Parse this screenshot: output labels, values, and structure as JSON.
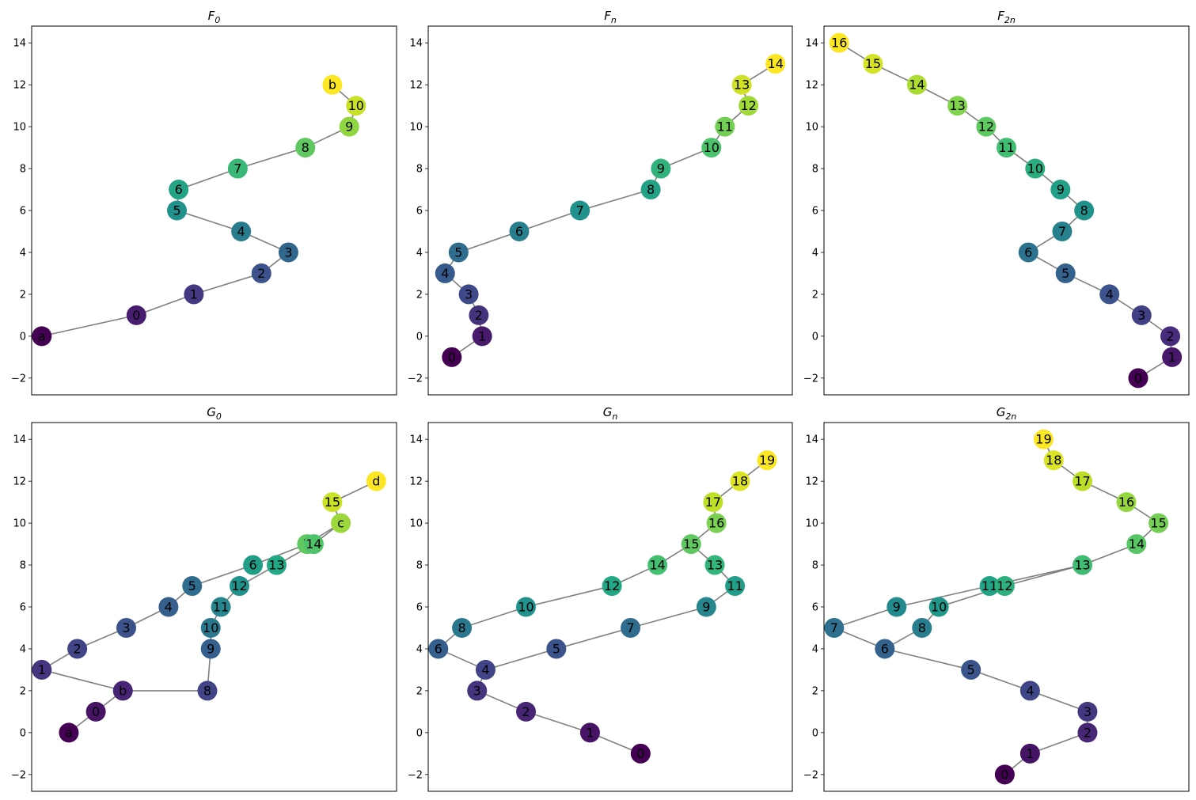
{
  "chart_data": [
    {
      "type": "scatter",
      "title": "F",
      "title_sub": "0",
      "xlim": [
        -0.3,
        10.5
      ],
      "ylim": [
        -2.8,
        14.8
      ],
      "yticks": [
        -2,
        0,
        2,
        4,
        6,
        8,
        10,
        12,
        14
      ],
      "nodes": [
        {
          "label": "a",
          "x": 0,
          "y": 0,
          "c": 0.0
        },
        {
          "label": "0",
          "x": 2.8,
          "y": 1,
          "c": 0.083
        },
        {
          "label": "1",
          "x": 4.5,
          "y": 2,
          "c": 0.167
        },
        {
          "label": "2",
          "x": 6.5,
          "y": 3,
          "c": 0.25
        },
        {
          "label": "3",
          "x": 7.3,
          "y": 4,
          "c": 0.333
        },
        {
          "label": "4",
          "x": 5.9,
          "y": 5,
          "c": 0.417
        },
        {
          "label": "5",
          "x": 4.0,
          "y": 6,
          "c": 0.5
        },
        {
          "label": "6",
          "x": 4.05,
          "y": 7,
          "c": 0.583
        },
        {
          "label": "7",
          "x": 5.8,
          "y": 8,
          "c": 0.667
        },
        {
          "label": "8",
          "x": 7.8,
          "y": 9,
          "c": 0.75
        },
        {
          "label": "9",
          "x": 9.1,
          "y": 10,
          "c": 0.833
        },
        {
          "label": "10",
          "x": 9.3,
          "y": 11,
          "c": 0.917
        },
        {
          "label": "b",
          "x": 8.6,
          "y": 12,
          "c": 1.0
        }
      ],
      "edges": [
        [
          "a",
          "0"
        ],
        [
          "0",
          "1"
        ],
        [
          "1",
          "2"
        ],
        [
          "2",
          "3"
        ],
        [
          "3",
          "4"
        ],
        [
          "4",
          "5"
        ],
        [
          "5",
          "6"
        ],
        [
          "6",
          "7"
        ],
        [
          "7",
          "8"
        ],
        [
          "8",
          "9"
        ],
        [
          "9",
          "10"
        ],
        [
          "10",
          "b"
        ]
      ]
    },
    {
      "type": "scatter",
      "title": "F",
      "title_sub": "n",
      "xlim": [
        -0.3,
        10.5
      ],
      "ylim": [
        -2.8,
        14.8
      ],
      "yticks": [
        -2,
        0,
        2,
        4,
        6,
        8,
        10,
        12,
        14
      ],
      "nodes": [
        {
          "label": "0",
          "x": 0.4,
          "y": -1,
          "c": 0.0
        },
        {
          "label": "1",
          "x": 1.3,
          "y": 0,
          "c": 0.071
        },
        {
          "label": "2",
          "x": 1.2,
          "y": 1,
          "c": 0.143
        },
        {
          "label": "3",
          "x": 0.9,
          "y": 2,
          "c": 0.214
        },
        {
          "label": "4",
          "x": 0.2,
          "y": 3,
          "c": 0.286
        },
        {
          "label": "5",
          "x": 0.6,
          "y": 4,
          "c": 0.357
        },
        {
          "label": "6",
          "x": 2.4,
          "y": 5,
          "c": 0.429
        },
        {
          "label": "7",
          "x": 4.2,
          "y": 6,
          "c": 0.5
        },
        {
          "label": "8",
          "x": 6.3,
          "y": 7,
          "c": 0.571
        },
        {
          "label": "9",
          "x": 6.6,
          "y": 8,
          "c": 0.643
        },
        {
          "label": "10",
          "x": 8.1,
          "y": 9,
          "c": 0.714
        },
        {
          "label": "11",
          "x": 8.5,
          "y": 10,
          "c": 0.786
        },
        {
          "label": "12",
          "x": 9.2,
          "y": 11,
          "c": 0.857
        },
        {
          "label": "13",
          "x": 9.0,
          "y": 12,
          "c": 0.929
        },
        {
          "label": "14",
          "x": 10.0,
          "y": 13,
          "c": 1.0
        }
      ],
      "edges": [
        [
          "0",
          "1"
        ],
        [
          "1",
          "2"
        ],
        [
          "2",
          "3"
        ],
        [
          "3",
          "4"
        ],
        [
          "4",
          "5"
        ],
        [
          "5",
          "6"
        ],
        [
          "6",
          "7"
        ],
        [
          "7",
          "8"
        ],
        [
          "8",
          "9"
        ],
        [
          "9",
          "10"
        ],
        [
          "10",
          "11"
        ],
        [
          "11",
          "12"
        ],
        [
          "12",
          "13"
        ],
        [
          "13",
          "14"
        ]
      ]
    },
    {
      "type": "scatter",
      "title": "F",
      "title_sub": "2n",
      "xlim": [
        -0.3,
        10.5
      ],
      "ylim": [
        -2.8,
        14.8
      ],
      "yticks": [
        -2,
        0,
        2,
        4,
        6,
        8,
        10,
        12,
        14
      ],
      "nodes": [
        {
          "label": "0",
          "x": 9.0,
          "y": -2,
          "c": 0.0
        },
        {
          "label": "1",
          "x": 10.0,
          "y": -1,
          "c": 0.0625
        },
        {
          "label": "2",
          "x": 9.95,
          "y": 0,
          "c": 0.125
        },
        {
          "label": "3",
          "x": 9.1,
          "y": 1,
          "c": 0.1875
        },
        {
          "label": "4",
          "x": 8.15,
          "y": 2,
          "c": 0.25
        },
        {
          "label": "5",
          "x": 6.85,
          "y": 3,
          "c": 0.3125
        },
        {
          "label": "6",
          "x": 5.75,
          "y": 4,
          "c": 0.375
        },
        {
          "label": "7",
          "x": 6.75,
          "y": 5,
          "c": 0.4375
        },
        {
          "label": "8",
          "x": 7.4,
          "y": 6,
          "c": 0.5
        },
        {
          "label": "9",
          "x": 6.7,
          "y": 7,
          "c": 0.5625
        },
        {
          "label": "10",
          "x": 5.95,
          "y": 8,
          "c": 0.625
        },
        {
          "label": "11",
          "x": 5.1,
          "y": 9,
          "c": 0.6875
        },
        {
          "label": "12",
          "x": 4.5,
          "y": 10,
          "c": 0.75
        },
        {
          "label": "13",
          "x": 3.65,
          "y": 11,
          "c": 0.8125
        },
        {
          "label": "14",
          "x": 2.45,
          "y": 12,
          "c": 0.875
        },
        {
          "label": "15",
          "x": 1.15,
          "y": 13,
          "c": 0.9375
        },
        {
          "label": "16",
          "x": 0.15,
          "y": 14,
          "c": 1.0
        }
      ],
      "edges": [
        [
          "0",
          "1"
        ],
        [
          "1",
          "2"
        ],
        [
          "2",
          "3"
        ],
        [
          "3",
          "4"
        ],
        [
          "4",
          "5"
        ],
        [
          "5",
          "6"
        ],
        [
          "6",
          "7"
        ],
        [
          "7",
          "8"
        ],
        [
          "8",
          "9"
        ],
        [
          "9",
          "10"
        ],
        [
          "10",
          "11"
        ],
        [
          "11",
          "12"
        ],
        [
          "12",
          "13"
        ],
        [
          "13",
          "14"
        ],
        [
          "14",
          "15"
        ],
        [
          "15",
          "16"
        ]
      ]
    },
    {
      "type": "scatter",
      "title": "G",
      "title_sub": "0",
      "xlim": [
        -0.3,
        10.5
      ],
      "ylim": [
        -2.8,
        14.8
      ],
      "yticks": [
        -2,
        0,
        2,
        4,
        6,
        8,
        10,
        12,
        14
      ],
      "nodes": [
        {
          "label": "a",
          "x": 0.8,
          "y": 0,
          "c": 0.0
        },
        {
          "label": "0",
          "x": 1.6,
          "y": 1,
          "c": 0.05
        },
        {
          "label": "b",
          "x": 2.4,
          "y": 2,
          "c": 0.1
        },
        {
          "label": "1",
          "x": 0.0,
          "y": 3,
          "c": 0.15
        },
        {
          "label": "2",
          "x": 1.05,
          "y": 4,
          "c": 0.2
        },
        {
          "label": "3",
          "x": 2.5,
          "y": 5,
          "c": 0.25
        },
        {
          "label": "4",
          "x": 3.75,
          "y": 6,
          "c": 0.3
        },
        {
          "label": "5",
          "x": 4.45,
          "y": 7,
          "c": 0.35
        },
        {
          "label": "6",
          "x": 6.25,
          "y": 8,
          "c": 0.55
        },
        {
          "label": "7",
          "x": 7.85,
          "y": 9,
          "c": 0.75
        },
        {
          "label": "8",
          "x": 4.9,
          "y": 2,
          "c": 0.2
        },
        {
          "label": "9",
          "x": 5.0,
          "y": 4,
          "c": 0.3
        },
        {
          "label": "10",
          "x": 5.0,
          "y": 5,
          "c": 0.4
        },
        {
          "label": "11",
          "x": 5.3,
          "y": 6,
          "c": 0.45
        },
        {
          "label": "12",
          "x": 5.85,
          "y": 7,
          "c": 0.5
        },
        {
          "label": "13",
          "x": 6.95,
          "y": 8,
          "c": 0.6
        },
        {
          "label": "14",
          "x": 8.05,
          "y": 9,
          "c": 0.72
        },
        {
          "label": "c",
          "x": 8.85,
          "y": 10,
          "c": 0.85
        },
        {
          "label": "15",
          "x": 8.6,
          "y": 11,
          "c": 0.92
        },
        {
          "label": "d",
          "x": 9.9,
          "y": 12,
          "c": 1.0
        }
      ],
      "edges": [
        [
          "a",
          "0"
        ],
        [
          "0",
          "b"
        ],
        [
          "b",
          "1"
        ],
        [
          "1",
          "2"
        ],
        [
          "2",
          "3"
        ],
        [
          "3",
          "4"
        ],
        [
          "4",
          "5"
        ],
        [
          "5",
          "6"
        ],
        [
          "6",
          "7"
        ],
        [
          "7",
          "c"
        ],
        [
          "b",
          "8"
        ],
        [
          "8",
          "9"
        ],
        [
          "9",
          "10"
        ],
        [
          "10",
          "11"
        ],
        [
          "11",
          "12"
        ],
        [
          "12",
          "13"
        ],
        [
          "13",
          "14"
        ],
        [
          "14",
          "c"
        ],
        [
          "c",
          "15"
        ],
        [
          "15",
          "d"
        ]
      ]
    },
    {
      "type": "scatter",
      "title": "G",
      "title_sub": "n",
      "xlim": [
        -0.3,
        10.5
      ],
      "ylim": [
        -2.8,
        14.8
      ],
      "yticks": [
        -2,
        0,
        2,
        4,
        6,
        8,
        10,
        12,
        14
      ],
      "nodes": [
        {
          "label": "0",
          "x": 6.0,
          "y": -1,
          "c": 0.0
        },
        {
          "label": "1",
          "x": 4.5,
          "y": 0,
          "c": 0.05
        },
        {
          "label": "2",
          "x": 2.6,
          "y": 1,
          "c": 0.1
        },
        {
          "label": "3",
          "x": 1.15,
          "y": 2,
          "c": 0.15
        },
        {
          "label": "4",
          "x": 1.4,
          "y": 3,
          "c": 0.2
        },
        {
          "label": "5",
          "x": 3.5,
          "y": 4,
          "c": 0.25
        },
        {
          "label": "6",
          "x": 0.0,
          "y": 4,
          "c": 0.3
        },
        {
          "label": "7",
          "x": 5.7,
          "y": 5,
          "c": 0.35
        },
        {
          "label": "8",
          "x": 0.7,
          "y": 5,
          "c": 0.4
        },
        {
          "label": "9",
          "x": 7.95,
          "y": 6,
          "c": 0.45
        },
        {
          "label": "10",
          "x": 2.6,
          "y": 6,
          "c": 0.5
        },
        {
          "label": "11",
          "x": 8.8,
          "y": 7,
          "c": 0.55
        },
        {
          "label": "12",
          "x": 5.15,
          "y": 7,
          "c": 0.6
        },
        {
          "label": "13",
          "x": 8.2,
          "y": 8,
          "c": 0.65
        },
        {
          "label": "14",
          "x": 6.5,
          "y": 8,
          "c": 0.7
        },
        {
          "label": "15",
          "x": 7.5,
          "y": 9,
          "c": 0.75
        },
        {
          "label": "16",
          "x": 8.25,
          "y": 10,
          "c": 0.8
        },
        {
          "label": "17",
          "x": 8.15,
          "y": 11,
          "c": 0.9
        },
        {
          "label": "18",
          "x": 8.95,
          "y": 12,
          "c": 0.95
        },
        {
          "label": "19",
          "x": 9.75,
          "y": 13,
          "c": 1.0
        }
      ],
      "edges": [
        [
          "0",
          "1"
        ],
        [
          "1",
          "2"
        ],
        [
          "2",
          "3"
        ],
        [
          "3",
          "4"
        ],
        [
          "4",
          "5"
        ],
        [
          "5",
          "7"
        ],
        [
          "7",
          "9"
        ],
        [
          "9",
          "11"
        ],
        [
          "11",
          "13"
        ],
        [
          "13",
          "15"
        ],
        [
          "4",
          "6"
        ],
        [
          "6",
          "8"
        ],
        [
          "8",
          "10"
        ],
        [
          "10",
          "12"
        ],
        [
          "12",
          "14"
        ],
        [
          "14",
          "15"
        ],
        [
          "15",
          "16"
        ],
        [
          "16",
          "17"
        ],
        [
          "17",
          "18"
        ],
        [
          "18",
          "19"
        ]
      ]
    },
    {
      "type": "scatter",
      "title": "G",
      "title_sub": "2n",
      "xlim": [
        -0.3,
        10.5
      ],
      "ylim": [
        -2.8,
        14.8
      ],
      "yticks": [
        -2,
        0,
        2,
        4,
        6,
        8,
        10,
        12,
        14
      ],
      "nodes": [
        {
          "label": "0",
          "x": 5.05,
          "y": -2,
          "c": 0.0
        },
        {
          "label": "1",
          "x": 5.8,
          "y": -1,
          "c": 0.053
        },
        {
          "label": "2",
          "x": 7.5,
          "y": 0,
          "c": 0.105
        },
        {
          "label": "3",
          "x": 7.5,
          "y": 1,
          "c": 0.158
        },
        {
          "label": "4",
          "x": 5.8,
          "y": 2,
          "c": 0.211
        },
        {
          "label": "5",
          "x": 4.05,
          "y": 3,
          "c": 0.263
        },
        {
          "label": "6",
          "x": 1.5,
          "y": 4,
          "c": 0.316
        },
        {
          "label": "7",
          "x": 0.0,
          "y": 5,
          "c": 0.368
        },
        {
          "label": "8",
          "x": 2.6,
          "y": 5,
          "c": 0.421
        },
        {
          "label": "9",
          "x": 1.85,
          "y": 6,
          "c": 0.474
        },
        {
          "label": "10",
          "x": 3.1,
          "y": 6,
          "c": 0.526
        },
        {
          "label": "11",
          "x": 4.6,
          "y": 7,
          "c": 0.579
        },
        {
          "label": "12",
          "x": 5.05,
          "y": 7,
          "c": 0.632
        },
        {
          "label": "13",
          "x": 7.35,
          "y": 8,
          "c": 0.684
        },
        {
          "label": "14",
          "x": 8.95,
          "y": 9,
          "c": 0.737
        },
        {
          "label": "15",
          "x": 9.6,
          "y": 10,
          "c": 0.789
        },
        {
          "label": "16",
          "x": 8.65,
          "y": 11,
          "c": 0.842
        },
        {
          "label": "17",
          "x": 7.35,
          "y": 12,
          "c": 0.895
        },
        {
          "label": "18",
          "x": 6.5,
          "y": 13,
          "c": 0.947
        },
        {
          "label": "19",
          "x": 6.2,
          "y": 14,
          "c": 1.0
        }
      ],
      "edges": [
        [
          "0",
          "1"
        ],
        [
          "1",
          "2"
        ],
        [
          "2",
          "3"
        ],
        [
          "3",
          "4"
        ],
        [
          "4",
          "5"
        ],
        [
          "5",
          "6"
        ],
        [
          "6",
          "7"
        ],
        [
          "7",
          "9"
        ],
        [
          "9",
          "11"
        ],
        [
          "11",
          "13"
        ],
        [
          "6",
          "8"
        ],
        [
          "8",
          "10"
        ],
        [
          "10",
          "12"
        ],
        [
          "12",
          "13"
        ],
        [
          "13",
          "14"
        ],
        [
          "14",
          "15"
        ],
        [
          "15",
          "16"
        ],
        [
          "16",
          "17"
        ],
        [
          "17",
          "18"
        ],
        [
          "18",
          "19"
        ]
      ]
    }
  ]
}
